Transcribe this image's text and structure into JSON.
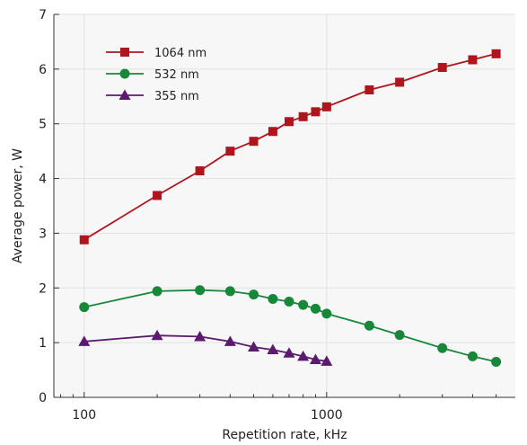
{
  "chart_data": {
    "type": "line",
    "title": "",
    "xlabel": "Repetition rate, kHz",
    "ylabel": "Average power, W",
    "x_scale": "log",
    "xlim": [
      75,
      6000
    ],
    "ylim": [
      0,
      7
    ],
    "x_tick_values": [
      100,
      1000
    ],
    "x_tick_labels": [
      "100",
      "1000"
    ],
    "y_ticks": [
      0,
      1,
      2,
      3,
      4,
      5,
      6,
      7
    ],
    "grid": true,
    "legend_placement": "top-left",
    "series": [
      {
        "name": "1064 nm",
        "color": "#b0151e",
        "marker": "square",
        "x": [
          100,
          200,
          300,
          400,
          500,
          600,
          700,
          800,
          900,
          1000,
          1500,
          2000,
          3000,
          4000,
          5000
        ],
        "y": [
          2.88,
          3.69,
          4.14,
          4.5,
          4.68,
          4.86,
          5.04,
          5.13,
          5.22,
          5.31,
          5.62,
          5.76,
          6.03,
          6.17,
          6.28
        ]
      },
      {
        "name": "532 nm",
        "color": "#17873a",
        "marker": "circle",
        "x": [
          100,
          200,
          300,
          400,
          500,
          600,
          700,
          800,
          900,
          1000,
          1500,
          2000,
          3000,
          4000,
          5000
        ],
        "y": [
          1.65,
          1.94,
          1.96,
          1.94,
          1.88,
          1.8,
          1.75,
          1.69,
          1.62,
          1.53,
          1.31,
          1.14,
          0.9,
          0.75,
          0.65
        ]
      },
      {
        "name": "355 nm",
        "color": "#5a1a6e",
        "marker": "triangle",
        "x": [
          100,
          200,
          300,
          400,
          500,
          600,
          700,
          800,
          900,
          1000
        ],
        "y": [
          1.02,
          1.13,
          1.11,
          1.02,
          0.92,
          0.87,
          0.81,
          0.75,
          0.69,
          0.66
        ]
      }
    ]
  }
}
